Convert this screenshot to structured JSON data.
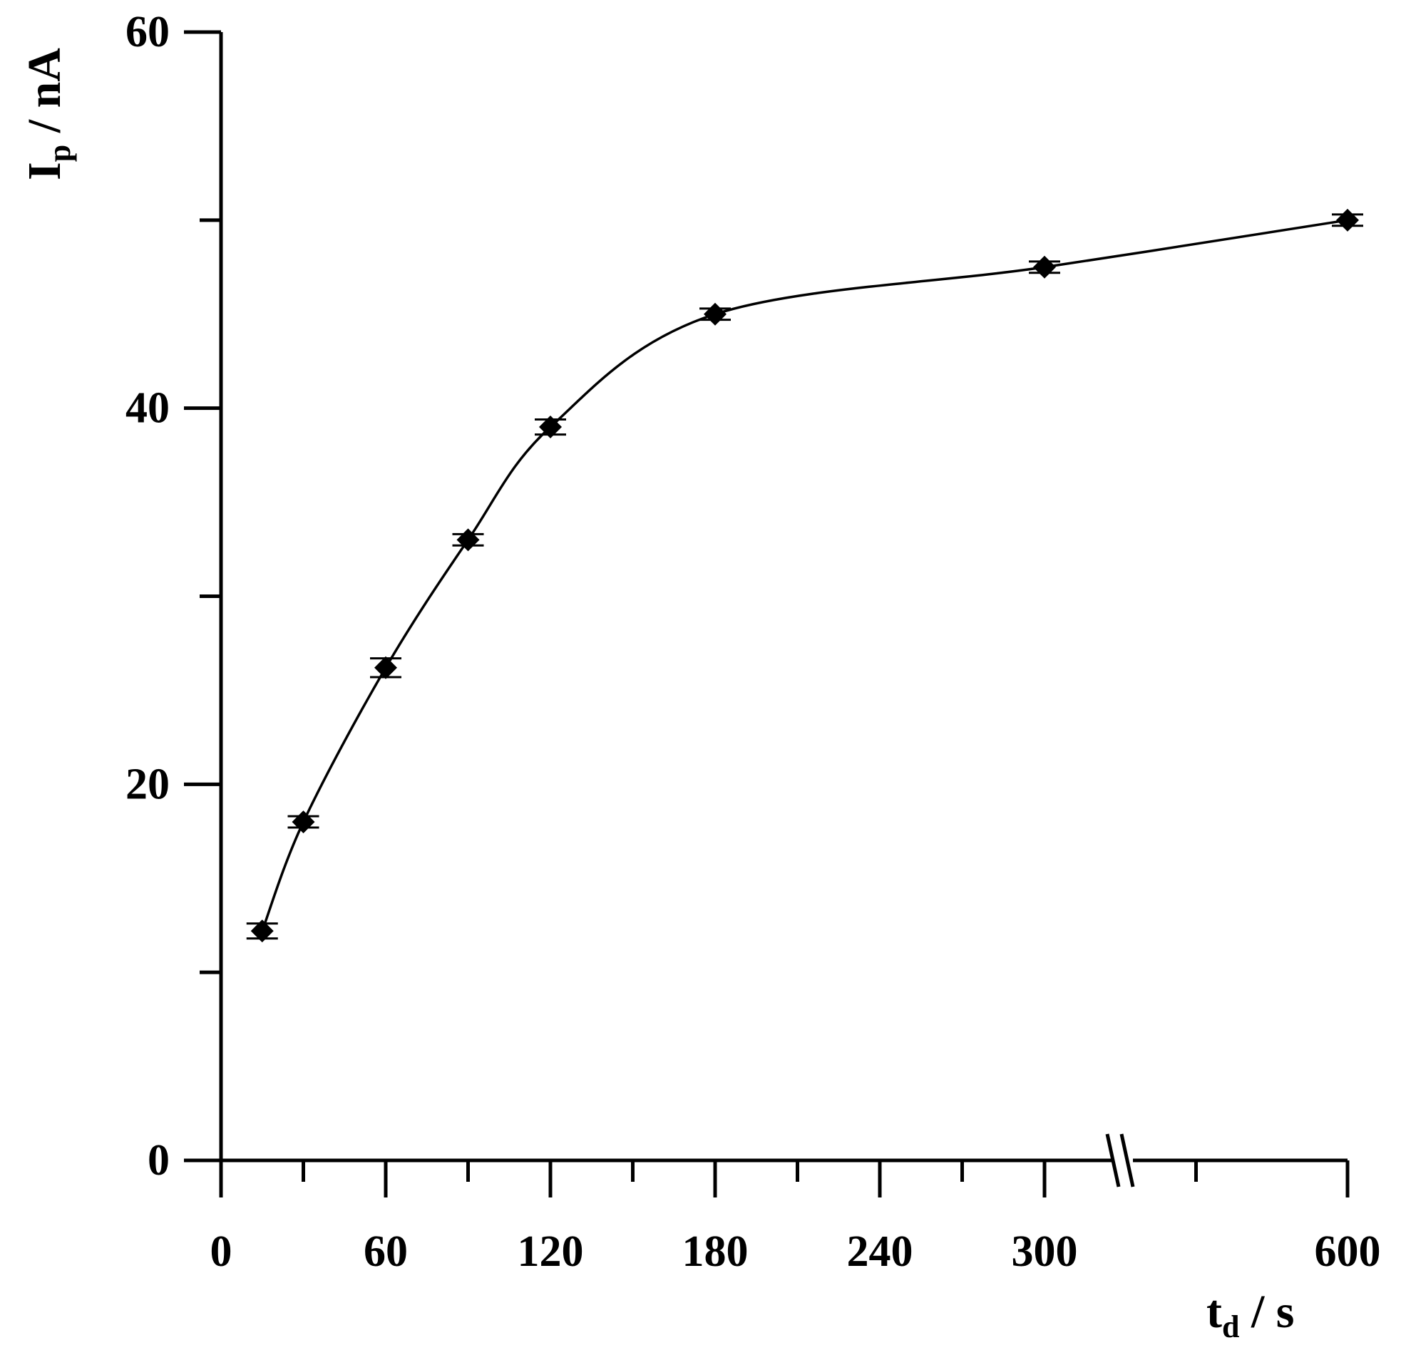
{
  "chart_data": {
    "type": "line",
    "xlabel": {
      "main": "t",
      "sub": "d",
      "rest": " / s"
    },
    "ylabel": {
      "main": "I",
      "sub": "p",
      "rest": " / nA"
    },
    "xlim": [
      0,
      600
    ],
    "ylim": [
      0,
      60
    ],
    "x_axis_break": {
      "after": 300,
      "before": 600
    },
    "x_ticks": [
      0,
      60,
      120,
      180,
      240,
      300,
      600
    ],
    "x_tick_labels": [
      "0",
      "60",
      "120",
      "180",
      "240",
      "300",
      "600"
    ],
    "x_minor_ticks": [
      30,
      90,
      150,
      210,
      270,
      450
    ],
    "y_ticks": [
      0,
      20,
      40,
      60
    ],
    "y_tick_labels": [
      "0",
      "20",
      "40",
      "60"
    ],
    "y_minor_ticks": [
      10,
      30,
      50
    ],
    "grid": false,
    "legend": "none",
    "series": [
      {
        "marker": "diamond",
        "color": "#000000",
        "smooth": true,
        "points": [
          {
            "x": 15,
            "y": 12.2,
            "err": 0.4
          },
          {
            "x": 30,
            "y": 18.0,
            "err": 0.3
          },
          {
            "x": 60,
            "y": 26.2,
            "err": 0.5
          },
          {
            "x": 90,
            "y": 33.0,
            "err": 0.3
          },
          {
            "x": 120,
            "y": 39.0,
            "err": 0.4
          },
          {
            "x": 180,
            "y": 45.0,
            "err": 0.3
          },
          {
            "x": 300,
            "y": 47.5,
            "err": 0.3
          },
          {
            "x": 600,
            "y": 50.0,
            "err": 0.3
          }
        ]
      }
    ]
  }
}
